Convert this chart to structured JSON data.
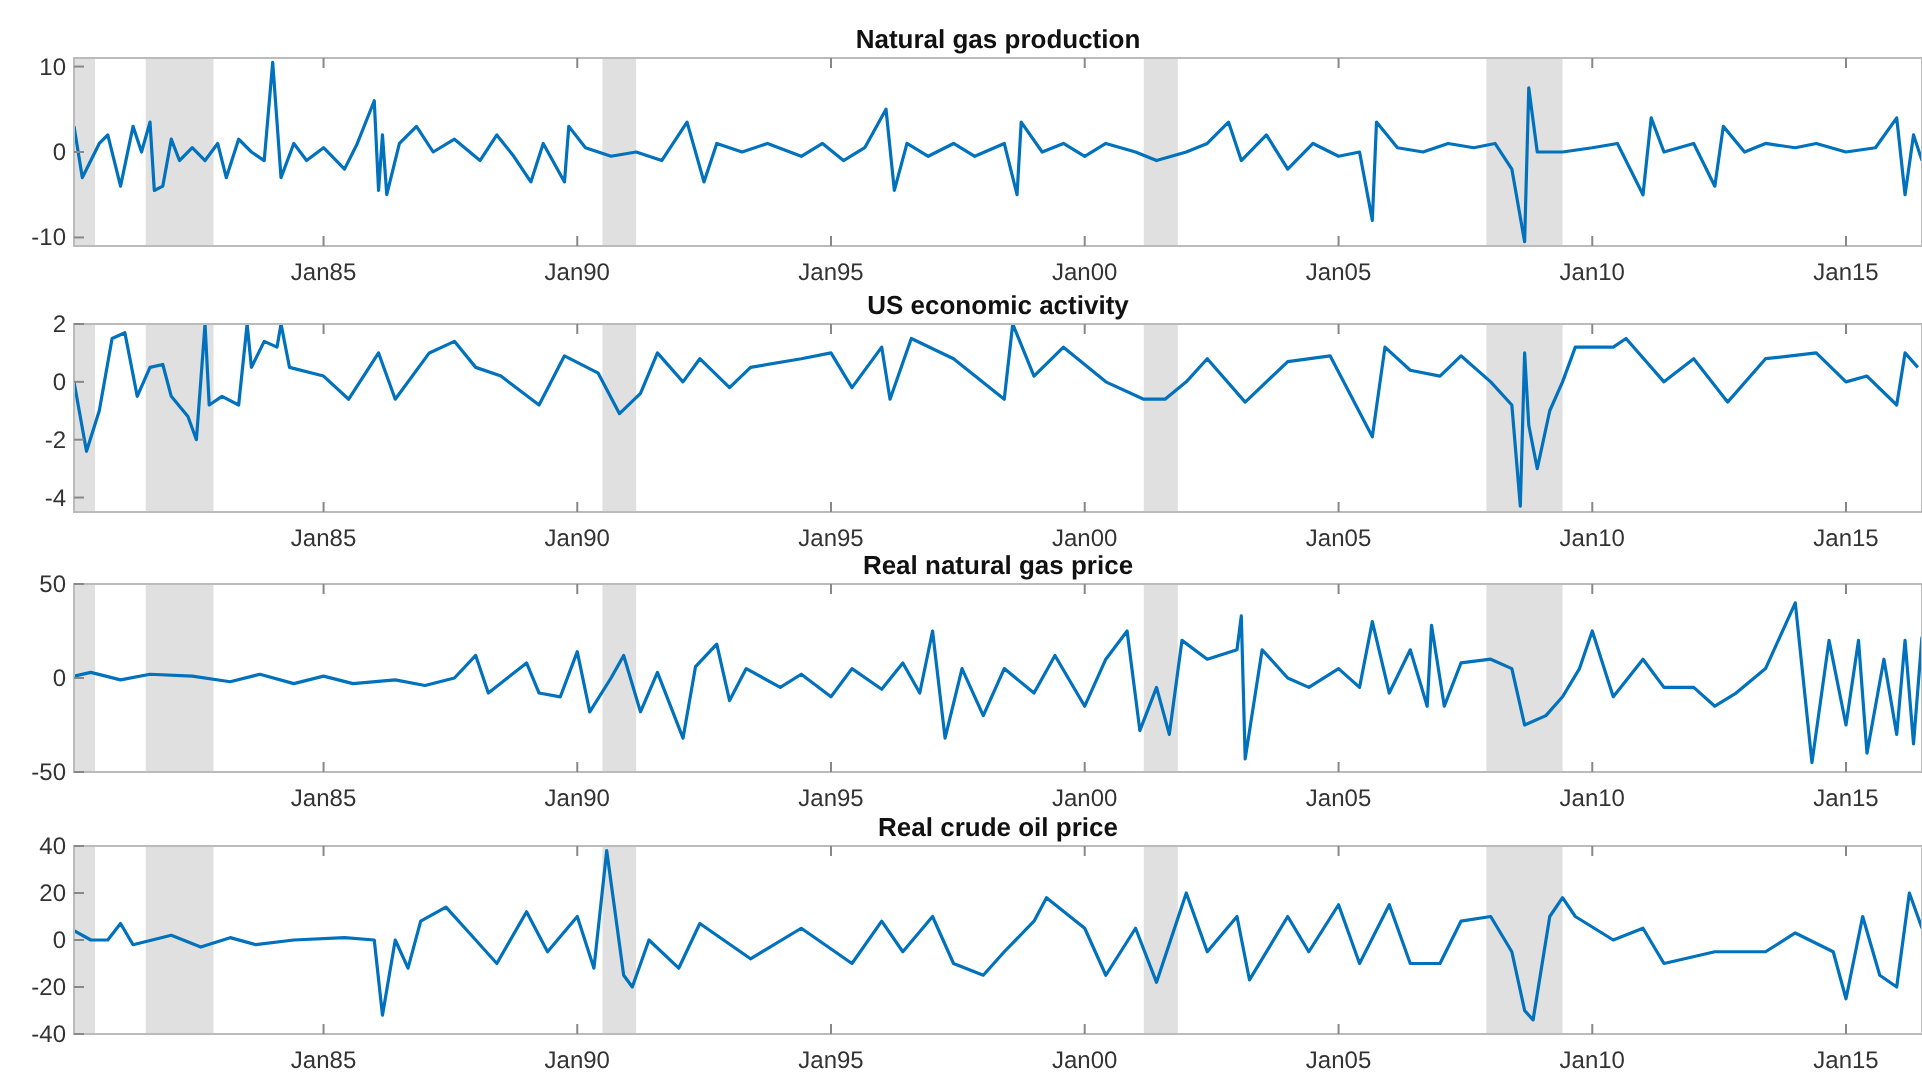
{
  "chart_data": [
    {
      "type": "line",
      "title": "Natural gas production",
      "xlim": [
        "1980-02",
        "2016-07"
      ],
      "ylim": [
        -11,
        11
      ],
      "yticks": [
        -10,
        0,
        10
      ],
      "xticks": [
        {
          "value": "1985-01",
          "label": "Jan85"
        },
        {
          "value": "1990-01",
          "label": "Jan90"
        },
        {
          "value": "1995-01",
          "label": "Jan95"
        },
        {
          "value": "2000-01",
          "label": "Jan00"
        },
        {
          "value": "2005-01",
          "label": "Jan05"
        },
        {
          "value": "2010-01",
          "label": "Jan10"
        },
        {
          "value": "2015-01",
          "label": "Jan15"
        }
      ],
      "bands": [
        {
          "axis": "x",
          "from": "1980-02",
          "to": "1980-07",
          "color": "#e0e0e0"
        },
        {
          "axis": "x",
          "from": "1981-07",
          "to": "1982-11",
          "color": "#e0e0e0"
        },
        {
          "axis": "x",
          "from": "1990-07",
          "to": "1991-03",
          "color": "#e0e0e0"
        },
        {
          "axis": "x",
          "from": "2001-03",
          "to": "2001-11",
          "color": "#e0e0e0"
        },
        {
          "axis": "x",
          "from": "2007-12",
          "to": "2009-06",
          "color": "#e0e0e0"
        }
      ],
      "series": [
        {
          "color": "#0072bd",
          "x": [
            "1980-02",
            "1980-04",
            "1980-06",
            "1980-08",
            "1980-10",
            "1981-01",
            "1981-04",
            "1981-06",
            "1981-08",
            "1981-09",
            "1981-11",
            "1982-01",
            "1982-03",
            "1982-06",
            "1982-09",
            "1982-12",
            "1983-02",
            "1983-05",
            "1983-08",
            "1983-11",
            "1984-01",
            "1984-03",
            "1984-06",
            "1984-09",
            "1985-01",
            "1985-06",
            "1985-09",
            "1986-01",
            "1986-02",
            "1986-03",
            "1986-04",
            "1986-07",
            "1986-11",
            "1987-03",
            "1987-08",
            "1988-02",
            "1988-06",
            "1988-10",
            "1989-02",
            "1989-05",
            "1989-10",
            "1989-11",
            "1990-03",
            "1990-09",
            "1991-03",
            "1991-09",
            "1992-03",
            "1992-07",
            "1992-10",
            "1993-04",
            "1993-10",
            "1994-06",
            "1994-11",
            "1995-04",
            "1995-09",
            "1996-02",
            "1996-04",
            "1996-07",
            "1996-12",
            "1997-06",
            "1997-11",
            "1998-06",
            "1998-09",
            "1998-10",
            "1999-03",
            "1999-08",
            "2000-01",
            "2000-06",
            "2001-01",
            "2001-06",
            "2002-01",
            "2002-06",
            "2002-11",
            "2003-02",
            "2003-08",
            "2004-01",
            "2004-07",
            "2005-01",
            "2005-06",
            "2005-09",
            "2005-10",
            "2006-03",
            "2006-09",
            "2007-03",
            "2007-09",
            "2008-02",
            "2008-06",
            "2008-09",
            "2008-10",
            "2008-12",
            "2009-06",
            "2010-01",
            "2010-07",
            "2011-01",
            "2011-03",
            "2011-06",
            "2012-01",
            "2012-06",
            "2012-08",
            "2013-01",
            "2013-06",
            "2014-01",
            "2014-06",
            "2015-01",
            "2015-08",
            "2016-01",
            "2016-03",
            "2016-05",
            "2016-07"
          ],
          "values": [
            3,
            -3,
            -1,
            1,
            2,
            -4,
            3,
            0,
            3.5,
            -4.5,
            -4,
            1.5,
            -1,
            0.5,
            -1,
            1,
            -3,
            1.5,
            0,
            -1,
            10.5,
            -3,
            1,
            -1,
            0.5,
            -2,
            1,
            6,
            -4.5,
            2,
            -5,
            1,
            3,
            0,
            1.5,
            -1,
            2,
            -0.5,
            -3.5,
            1,
            -3.5,
            3,
            0.5,
            -0.5,
            0,
            -1,
            3.5,
            -3.5,
            1,
            0,
            1,
            -0.5,
            1,
            -1,
            0.5,
            5,
            -4.5,
            1,
            -0.5,
            1,
            -0.5,
            1,
            -5,
            3.5,
            0,
            1,
            -0.5,
            1,
            0,
            -1,
            0,
            1,
            3.5,
            -1,
            2,
            -2,
            1,
            -0.5,
            0,
            -8,
            3.5,
            0.5,
            0,
            1,
            0.5,
            1,
            -2,
            -10.5,
            7.5,
            0,
            0,
            0.5,
            1,
            -5,
            4,
            0,
            1,
            -4,
            3,
            0,
            1,
            0.5,
            1,
            0,
            0.5,
            4,
            -5,
            2,
            -1
          ]
        }
      ]
    },
    {
      "type": "line",
      "title": "US economic activity",
      "xlim": [
        "1980-02",
        "2016-07"
      ],
      "ylim": [
        -4.5,
        2
      ],
      "yticks": [
        -4,
        -2,
        0,
        2
      ],
      "xticks": [
        {
          "value": "1985-01",
          "label": "Jan85"
        },
        {
          "value": "1990-01",
          "label": "Jan90"
        },
        {
          "value": "1995-01",
          "label": "Jan95"
        },
        {
          "value": "2000-01",
          "label": "Jan00"
        },
        {
          "value": "2005-01",
          "label": "Jan05"
        },
        {
          "value": "2010-01",
          "label": "Jan10"
        },
        {
          "value": "2015-01",
          "label": "Jan15"
        }
      ],
      "bands": [
        {
          "axis": "x",
          "from": "1980-02",
          "to": "1980-07",
          "color": "#e0e0e0"
        },
        {
          "axis": "x",
          "from": "1981-07",
          "to": "1982-11",
          "color": "#e0e0e0"
        },
        {
          "axis": "x",
          "from": "1990-07",
          "to": "1991-03",
          "color": "#e0e0e0"
        },
        {
          "axis": "x",
          "from": "2001-03",
          "to": "2001-11",
          "color": "#e0e0e0"
        },
        {
          "axis": "x",
          "from": "2007-12",
          "to": "2009-06",
          "color": "#e0e0e0"
        }
      ],
      "series": [
        {
          "color": "#0072bd",
          "x": [
            "1980-02",
            "1980-05",
            "1980-08",
            "1980-11",
            "1981-02",
            "1981-05",
            "1981-08",
            "1981-11",
            "1982-01",
            "1982-05",
            "1982-07",
            "1982-09",
            "1982-10",
            "1983-01",
            "1983-05",
            "1983-07",
            "1983-08",
            "1983-11",
            "1984-02",
            "1984-03",
            "1984-05",
            "1985-01",
            "1985-07",
            "1986-02",
            "1986-06",
            "1987-02",
            "1987-08",
            "1988-01",
            "1988-07",
            "1989-04",
            "1989-10",
            "1990-06",
            "1990-11",
            "1991-04",
            "1991-08",
            "1992-02",
            "1992-06",
            "1993-01",
            "1993-06",
            "1994-06",
            "1995-01",
            "1995-06",
            "1996-01",
            "1996-03",
            "1996-08",
            "1997-06",
            "1998-06",
            "1998-08",
            "1999-01",
            "1999-08",
            "2000-06",
            "2001-03",
            "2001-08",
            "2002-01",
            "2002-06",
            "2003-03",
            "2004-01",
            "2004-11",
            "2005-09",
            "2005-12",
            "2006-06",
            "2007-01",
            "2007-06",
            "2008-01",
            "2008-06",
            "2008-08",
            "2008-09",
            "2008-10",
            "2008-12",
            "2009-03",
            "2009-06",
            "2009-09",
            "2010-06",
            "2010-09",
            "2011-06",
            "2012-01",
            "2012-09",
            "2013-06",
            "2014-06",
            "2015-01",
            "2015-06",
            "2016-01",
            "2016-03",
            "2016-06"
          ],
          "values": [
            0,
            -2.4,
            -1,
            1.5,
            1.7,
            -0.5,
            0.5,
            0.6,
            -0.5,
            -1.2,
            -2,
            2,
            -0.8,
            -0.5,
            -0.8,
            2,
            0.5,
            1.4,
            1.2,
            2,
            0.5,
            0.2,
            -0.6,
            1,
            -0.6,
            1,
            1.4,
            0.5,
            0.2,
            -0.8,
            0.9,
            0.3,
            -1.1,
            -0.4,
            1,
            0,
            0.8,
            -0.2,
            0.5,
            0.8,
            1,
            -0.2,
            1.2,
            -0.6,
            1.5,
            0.8,
            -0.6,
            2,
            0.2,
            1.2,
            0,
            -0.6,
            -0.6,
            0,
            0.8,
            -0.7,
            0.7,
            0.9,
            -1.9,
            1.2,
            0.4,
            0.2,
            0.9,
            0,
            -0.8,
            -4.3,
            1,
            -1.5,
            -3,
            -1,
            0,
            1.2,
            1.2,
            1.5,
            0,
            0.8,
            -0.7,
            0.8,
            1,
            0,
            0.2,
            -0.8,
            1,
            0.5
          ]
        }
      ]
    },
    {
      "type": "line",
      "title": "Real natural gas price",
      "xlim": [
        "1980-02",
        "2016-07"
      ],
      "ylim": [
        -50,
        50
      ],
      "yticks": [
        -50,
        0,
        50
      ],
      "xticks": [
        {
          "value": "1985-01",
          "label": "Jan85"
        },
        {
          "value": "1990-01",
          "label": "Jan90"
        },
        {
          "value": "1995-01",
          "label": "Jan95"
        },
        {
          "value": "2000-01",
          "label": "Jan00"
        },
        {
          "value": "2005-01",
          "label": "Jan05"
        },
        {
          "value": "2010-01",
          "label": "Jan10"
        },
        {
          "value": "2015-01",
          "label": "Jan15"
        }
      ],
      "bands": [
        {
          "axis": "x",
          "from": "1980-02",
          "to": "1980-07",
          "color": "#e0e0e0"
        },
        {
          "axis": "x",
          "from": "1981-07",
          "to": "1982-11",
          "color": "#e0e0e0"
        },
        {
          "axis": "x",
          "from": "1990-07",
          "to": "1991-03",
          "color": "#e0e0e0"
        },
        {
          "axis": "x",
          "from": "2001-03",
          "to": "2001-11",
          "color": "#e0e0e0"
        },
        {
          "axis": "x",
          "from": "2007-12",
          "to": "2009-06",
          "color": "#e0e0e0"
        }
      ],
      "series": [
        {
          "color": "#0072bd",
          "x": [
            "1980-02",
            "1980-06",
            "1981-01",
            "1981-08",
            "1982-06",
            "1983-03",
            "1983-10",
            "1984-06",
            "1985-01",
            "1985-08",
            "1986-06",
            "1987-01",
            "1987-08",
            "1988-01",
            "1988-04",
            "1989-01",
            "1989-04",
            "1989-09",
            "1990-01",
            "1990-04",
            "1990-09",
            "1990-12",
            "1991-04",
            "1991-08",
            "1992-02",
            "1992-05",
            "1992-10",
            "1993-01",
            "1993-05",
            "1994-01",
            "1994-06",
            "1995-01",
            "1995-06",
            "1996-01",
            "1996-06",
            "1996-10",
            "1997-01",
            "1997-04",
            "1997-08",
            "1998-01",
            "1998-06",
            "1999-01",
            "1999-06",
            "2000-01",
            "2000-06",
            "2000-11",
            "2001-02",
            "2001-06",
            "2001-09",
            "2001-12",
            "2002-06",
            "2003-01",
            "2003-02",
            "2003-03",
            "2003-07",
            "2004-01",
            "2004-06",
            "2005-01",
            "2005-06",
            "2005-09",
            "2006-01",
            "2006-06",
            "2006-10",
            "2006-11",
            "2007-02",
            "2007-06",
            "2008-01",
            "2008-06",
            "2008-09",
            "2009-02",
            "2009-06",
            "2009-10",
            "2010-01",
            "2010-06",
            "2011-01",
            "2011-06",
            "2012-01",
            "2012-06",
            "2012-11",
            "2013-06",
            "2014-01",
            "2014-05",
            "2014-09",
            "2015-01",
            "2015-04",
            "2015-06",
            "2015-10",
            "2016-01",
            "2016-03",
            "2016-05",
            "2016-07"
          ],
          "values": [
            1,
            3,
            -1,
            2,
            1,
            -2,
            2,
            -3,
            1,
            -3,
            -1,
            -4,
            0,
            12,
            -8,
            8,
            -8,
            -10,
            14,
            -18,
            0,
            12,
            -18,
            3,
            -32,
            6,
            18,
            -12,
            5,
            -5,
            2,
            -10,
            5,
            -6,
            8,
            -8,
            25,
            -32,
            5,
            -20,
            5,
            -8,
            12,
            -15,
            10,
            25,
            -28,
            -5,
            -30,
            20,
            10,
            15,
            33,
            -43,
            15,
            0,
            -5,
            5,
            -5,
            30,
            -8,
            15,
            -15,
            28,
            -15,
            8,
            10,
            5,
            -25,
            -20,
            -10,
            5,
            25,
            -10,
            10,
            -5,
            -5,
            -15,
            -8,
            5,
            40,
            -45,
            20,
            -25,
            20,
            -40,
            10,
            -30,
            20,
            -35,
            22
          ]
        }
      ]
    },
    {
      "type": "line",
      "title": "Real crude oil price",
      "xlim": [
        "1980-02",
        "2016-07"
      ],
      "ylim": [
        -40,
        40
      ],
      "yticks": [
        -40,
        -20,
        0,
        20,
        40
      ],
      "xticks": [
        {
          "value": "1985-01",
          "label": "Jan85"
        },
        {
          "value": "1990-01",
          "label": "Jan90"
        },
        {
          "value": "1995-01",
          "label": "Jan95"
        },
        {
          "value": "2000-01",
          "label": "Jan00"
        },
        {
          "value": "2005-01",
          "label": "Jan05"
        },
        {
          "value": "2010-01",
          "label": "Jan10"
        },
        {
          "value": "2015-01",
          "label": "Jan15"
        }
      ],
      "bands": [
        {
          "axis": "x",
          "from": "1980-02",
          "to": "1980-07",
          "color": "#e0e0e0"
        },
        {
          "axis": "x",
          "from": "1981-07",
          "to": "1982-11",
          "color": "#e0e0e0"
        },
        {
          "axis": "x",
          "from": "1990-07",
          "to": "1991-03",
          "color": "#e0e0e0"
        },
        {
          "axis": "x",
          "from": "2001-03",
          "to": "2001-11",
          "color": "#e0e0e0"
        },
        {
          "axis": "x",
          "from": "2007-12",
          "to": "2009-06",
          "color": "#e0e0e0"
        }
      ],
      "series": [
        {
          "color": "#0072bd",
          "x": [
            "1980-02",
            "1980-06",
            "1980-10",
            "1981-01",
            "1981-04",
            "1982-01",
            "1982-08",
            "1983-03",
            "1983-09",
            "1984-06",
            "1985-06",
            "1986-01",
            "1986-03",
            "1986-06",
            "1986-09",
            "1986-12",
            "1987-06",
            "1988-01",
            "1988-06",
            "1989-01",
            "1989-06",
            "1990-01",
            "1990-05",
            "1990-08",
            "1990-12",
            "1991-02",
            "1991-06",
            "1992-01",
            "1992-06",
            "1993-06",
            "1994-06",
            "1995-06",
            "1996-01",
            "1996-06",
            "1997-01",
            "1997-06",
            "1998-01",
            "1998-06",
            "1999-01",
            "1999-04",
            "2000-01",
            "2000-06",
            "2001-01",
            "2001-06",
            "2002-01",
            "2002-06",
            "2003-01",
            "2003-04",
            "2004-01",
            "2004-06",
            "2005-01",
            "2005-06",
            "2006-01",
            "2006-06",
            "2007-01",
            "2007-06",
            "2008-01",
            "2008-06",
            "2008-09",
            "2008-11",
            "2009-03",
            "2009-06",
            "2009-09",
            "2010-06",
            "2011-01",
            "2011-06",
            "2012-06",
            "2013-06",
            "2014-01",
            "2014-10",
            "2015-01",
            "2015-05",
            "2015-09",
            "2016-01",
            "2016-04",
            "2016-07"
          ],
          "values": [
            4,
            0,
            0,
            7,
            -2,
            2,
            -3,
            1,
            -2,
            0,
            1,
            0,
            -32,
            0,
            -12,
            8,
            14,
            0,
            -10,
            12,
            -5,
            10,
            -12,
            38,
            -15,
            -20,
            0,
            -12,
            7,
            -8,
            5,
            -10,
            8,
            -5,
            10,
            -10,
            -15,
            -5,
            8,
            18,
            5,
            -15,
            5,
            -18,
            20,
            -5,
            10,
            -17,
            10,
            -5,
            15,
            -10,
            15,
            -10,
            -10,
            8,
            10,
            -5,
            -30,
            -34,
            10,
            18,
            10,
            0,
            5,
            -10,
            -5,
            -5,
            3,
            -5,
            -25,
            10,
            -15,
            -20,
            20,
            5
          ]
        }
      ]
    }
  ]
}
